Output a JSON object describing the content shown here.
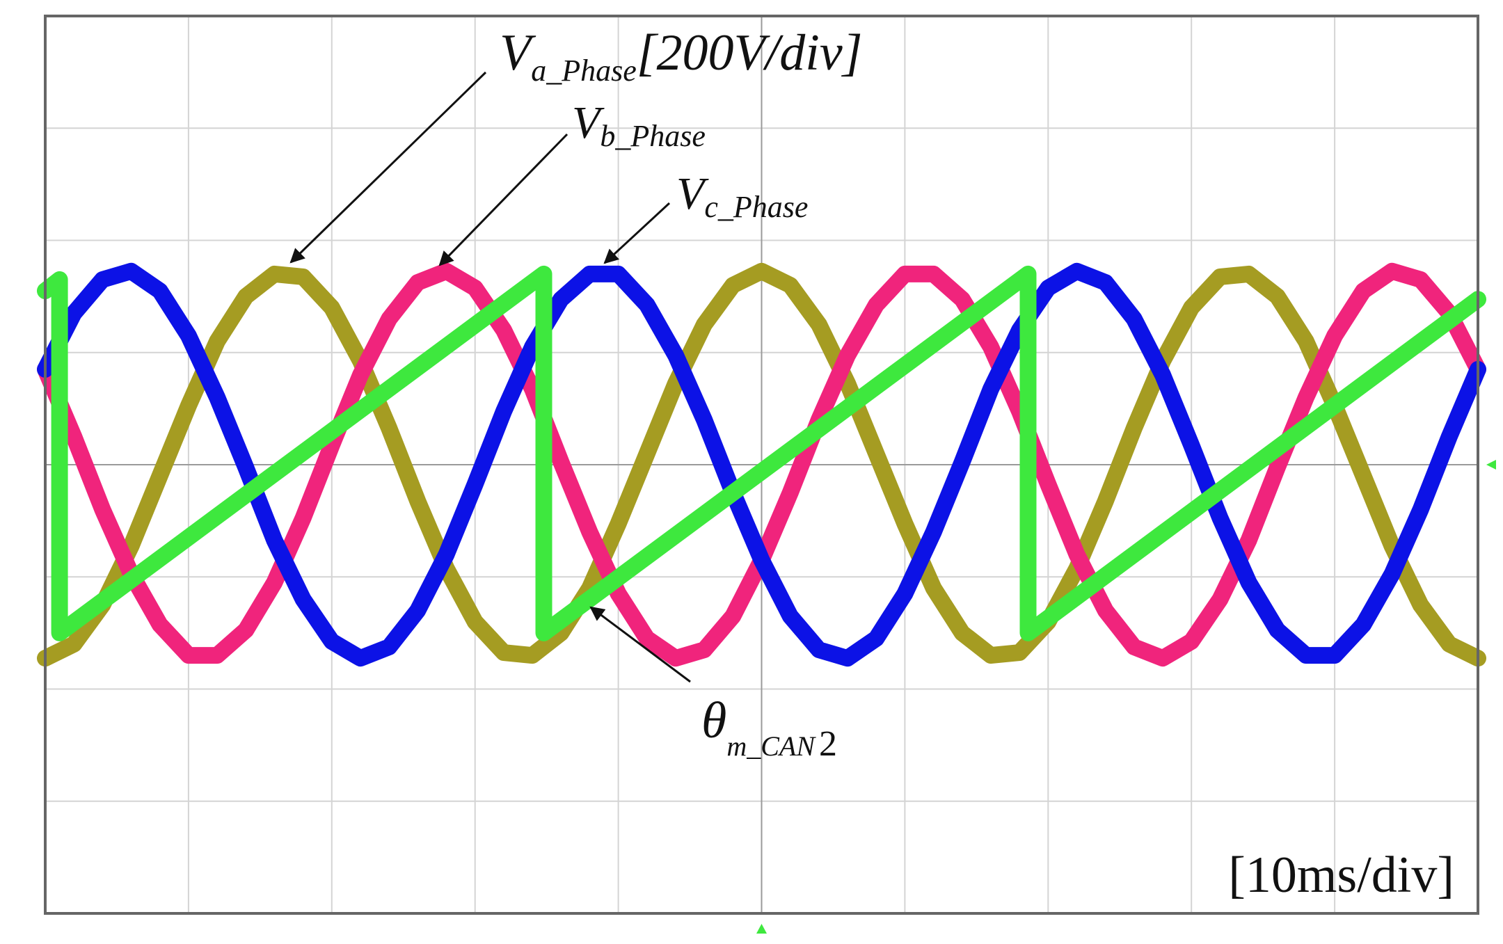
{
  "chart_data": {
    "type": "line",
    "xlim": [
      0,
      100
    ],
    "ylim": [
      -800,
      800
    ],
    "xticks": [
      0,
      10,
      20,
      30,
      40,
      50,
      60,
      70,
      80,
      90,
      100
    ],
    "yticks": [
      -800,
      -600,
      -400,
      -200,
      0,
      200,
      400,
      600,
      800
    ],
    "grid": true,
    "x": [
      0,
      2,
      4,
      6,
      8,
      10,
      12,
      14,
      16,
      18,
      20,
      22,
      24,
      26,
      28,
      30,
      32,
      34,
      36,
      38,
      40,
      42,
      44,
      46,
      48,
      50,
      52,
      54,
      56,
      58,
      60,
      62,
      64,
      66,
      68,
      70,
      72,
      74,
      76,
      78,
      80,
      82,
      84,
      86,
      88,
      90,
      92,
      94,
      96,
      98,
      100
    ],
    "series": [
      {
        "color": "#a59c22",
        "values": [
          -345,
          -320,
          -250,
          -145,
          -20,
          105,
          220,
          300,
          340,
          335,
          280,
          185,
          65,
          -65,
          -185,
          -280,
          -335,
          -340,
          -300,
          -220,
          -105,
          20,
          145,
          250,
          320,
          345,
          320,
          250,
          145,
          20,
          -105,
          -220,
          -300,
          -340,
          -335,
          -280,
          -185,
          -65,
          65,
          185,
          280,
          335,
          340,
          300,
          220,
          105,
          -20,
          -145,
          -250,
          -320,
          -345
        ]
      },
      {
        "color": "#f0247c",
        "values": [
          170,
          50,
          -80,
          -195,
          -285,
          -340,
          -340,
          -295,
          -210,
          -95,
          35,
          160,
          260,
          325,
          345,
          315,
          240,
          135,
          5,
          -120,
          -230,
          -310,
          -345,
          -330,
          -270,
          -170,
          -50,
          80,
          195,
          285,
          340,
          340,
          295,
          210,
          95,
          -35,
          -160,
          -260,
          -325,
          -345,
          -315,
          -240,
          -135,
          -5,
          120,
          230,
          310,
          345,
          330,
          270,
          170
        ]
      },
      {
        "color": "#0c12e6",
        "values": [
          170,
          270,
          330,
          345,
          310,
          230,
          120,
          -5,
          -135,
          -240,
          -315,
          -345,
          -325,
          -260,
          -160,
          -35,
          95,
          210,
          295,
          340,
          340,
          285,
          195,
          80,
          -50,
          -170,
          -270,
          -330,
          -345,
          -310,
          -230,
          -120,
          5,
          135,
          240,
          315,
          345,
          325,
          260,
          160,
          35,
          -95,
          -210,
          -295,
          -340,
          -340,
          -285,
          -195,
          -80,
          50,
          170
        ]
      },
      {
        "color": "#3ee83e",
        "x": [
          0,
          1,
          1,
          34.8,
          34.8,
          68.6,
          68.6,
          100
        ],
        "values": [
          310,
          330,
          -300,
          340,
          -300,
          340,
          -300,
          295
        ]
      }
    ],
    "annotations": [
      {
        "main": "V",
        "sub": "a_Phase",
        "after": "[200V/div]"
      },
      {
        "main": "V",
        "sub": "b_Phase"
      },
      {
        "main": "V",
        "sub": "c_Phase"
      },
      {
        "main": "θ",
        "sub": "m_CAN",
        "after": "2"
      }
    ],
    "note": "[10ms/div]"
  }
}
